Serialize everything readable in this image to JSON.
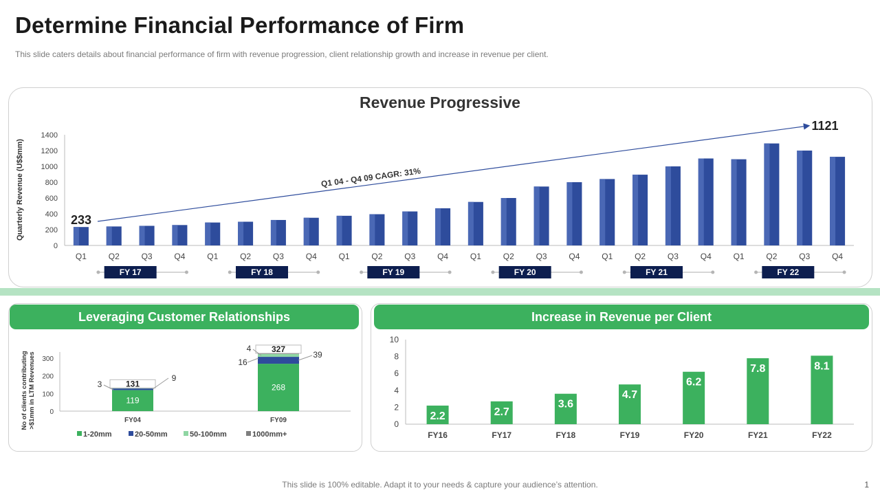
{
  "page": {
    "title": "Determine Financial Performance of Firm",
    "subtitle": "This slide caters details about financial performance of firm with revenue progression, client relationship growth and increase in revenue per client.",
    "footer": "This slide is 100% editable. Adapt it to your needs & capture your audience’s attention.",
    "page_number": "1"
  },
  "colors": {
    "navy_bar": "#2e4c9c",
    "navy_label": "#0d1e4f",
    "green": "#3cb15e",
    "light_green": "#8fd6a3",
    "gray": "#7f7f7f"
  },
  "chart_data": [
    {
      "type": "bar",
      "title": "Revenue Progressive",
      "ylabel": "Quarterly Revenue (U$$mm)",
      "ylim": [
        0,
        1400
      ],
      "yticks": [
        0,
        200,
        400,
        600,
        800,
        1000,
        1200,
        1400
      ],
      "categories": [
        "Q1",
        "Q2",
        "Q3",
        "Q4",
        "Q1",
        "Q2",
        "Q3",
        "Q4",
        "Q1",
        "Q2",
        "Q3",
        "Q4",
        "Q1",
        "Q2",
        "Q3",
        "Q4",
        "Q1",
        "Q2",
        "Q3",
        "Q4",
        "Q1",
        "Q2",
        "Q3",
        "Q4"
      ],
      "values": [
        233,
        240,
        248,
        258,
        290,
        300,
        322,
        350,
        375,
        395,
        430,
        470,
        550,
        600,
        745,
        800,
        840,
        895,
        1000,
        1100,
        1090,
        1290,
        1200,
        1121
      ],
      "fiscal_years": [
        "FY 17",
        "FY 18",
        "FY 19",
        "FY 20",
        "FY 21",
        "FY 22"
      ],
      "annotations": {
        "start_value": "233",
        "end_value": "1121",
        "trend_label": "Q1 04 - Q4 09 CAGR: 31%"
      }
    },
    {
      "type": "bar",
      "title": "Leveraging Customer Relationships",
      "ylabel": "No of clients contributing >$1mm in LTM Revenues",
      "ylim": [
        0,
        350
      ],
      "yticks": [
        0,
        100,
        200,
        300
      ],
      "categories": [
        "FY04",
        "FY09"
      ],
      "stacked": true,
      "series": [
        {
          "name": "1-20mm",
          "values": [
            119,
            268
          ]
        },
        {
          "name": "20-50mm",
          "values": [
            9,
            39
          ]
        },
        {
          "name": "50-100mm",
          "values": [
            3,
            16
          ]
        },
        {
          "name": "1000mm+",
          "values": [
            0,
            4
          ]
        }
      ],
      "totals": [
        131,
        327
      ]
    },
    {
      "type": "bar",
      "title": "Increase in Revenue per Client",
      "ylim": [
        0,
        10
      ],
      "yticks": [
        0,
        2,
        4,
        6,
        8,
        10
      ],
      "categories": [
        "FY16",
        "FY17",
        "FY18",
        "FY19",
        "FY20",
        "FY21",
        "FY22"
      ],
      "values": [
        2.2,
        2.7,
        3.6,
        4.7,
        6.2,
        7.8,
        8.1
      ]
    }
  ]
}
